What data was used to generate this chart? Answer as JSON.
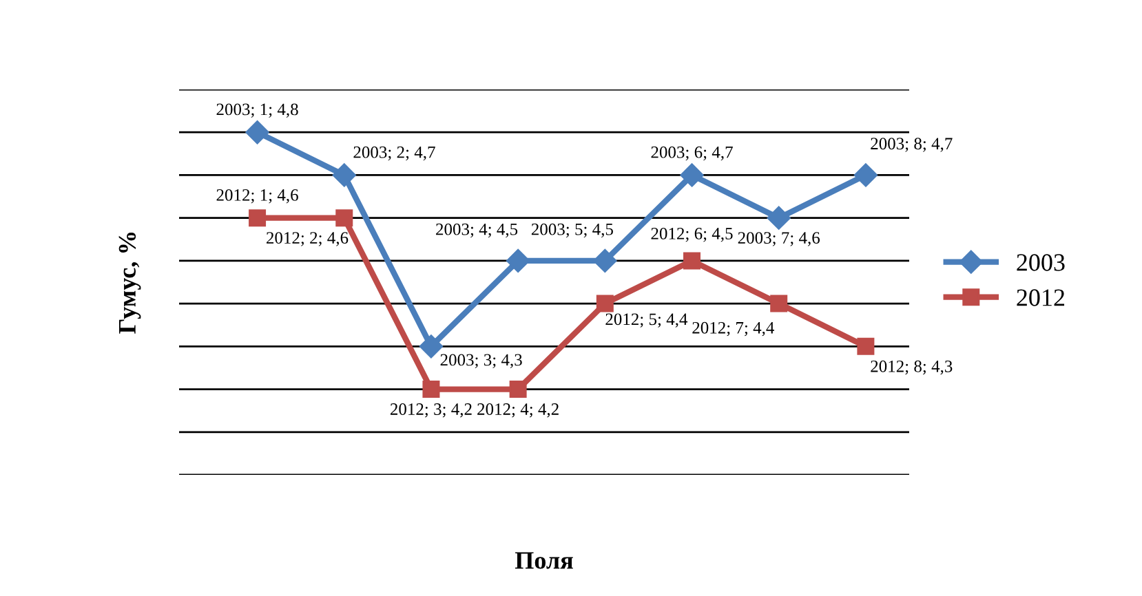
{
  "chart_data": {
    "type": "line",
    "xlabel": "Поля",
    "ylabel": "Гумус, %",
    "categories": [
      null,
      null,
      null,
      null,
      null,
      null,
      null,
      null
    ],
    "ylim": [
      4.0,
      4.9
    ],
    "yticks": [
      {
        "value": 4.0,
        "label": null
      },
      {
        "value": 4.1,
        "label": null
      },
      {
        "value": 4.2,
        "label": null
      },
      {
        "value": 4.3,
        "label": null
      },
      {
        "value": 4.4,
        "label": null
      },
      {
        "value": 4.5,
        "label": null
      },
      {
        "value": 4.6,
        "label": null
      },
      {
        "value": 4.7,
        "label": null
      },
      {
        "value": 4.8,
        "label": null
      },
      {
        "value": 4.9,
        "label": null
      }
    ],
    "grid": "y",
    "legend": "right",
    "tick_labels": false,
    "series": [
      {
        "name": "2003",
        "color": "#4a7ebb",
        "marker": "diamond",
        "values": [
          4.8,
          4.7,
          4.3,
          4.5,
          4.5,
          4.7,
          4.6,
          4.7
        ],
        "value_labels": [
          "2003; 1; 4,8",
          "2003; 2; 4,7",
          "2003; 3; 4,3",
          "2003; 4; 4,5",
          "2003; 5; 4,5",
          "2003; 6; 4,7",
          "2003; 7; 4,6",
          "2003; 8; 4,7"
        ]
      },
      {
        "name": "2012",
        "color": "#be4b48",
        "marker": "square",
        "values": [
          4.6,
          4.6,
          4.2,
          4.2,
          4.4,
          4.5,
          4.4,
          4.3
        ],
        "value_labels": [
          "2012; 1; 4,6",
          "2012; 2; 4,6",
          "2012; 3; 4,2",
          "2012; 4; 4,2",
          "2012; 5; 4,4",
          "2012; 6; 4,5",
          "2012; 7; 4,4",
          "2012; 8; 4,3"
        ]
      }
    ]
  }
}
